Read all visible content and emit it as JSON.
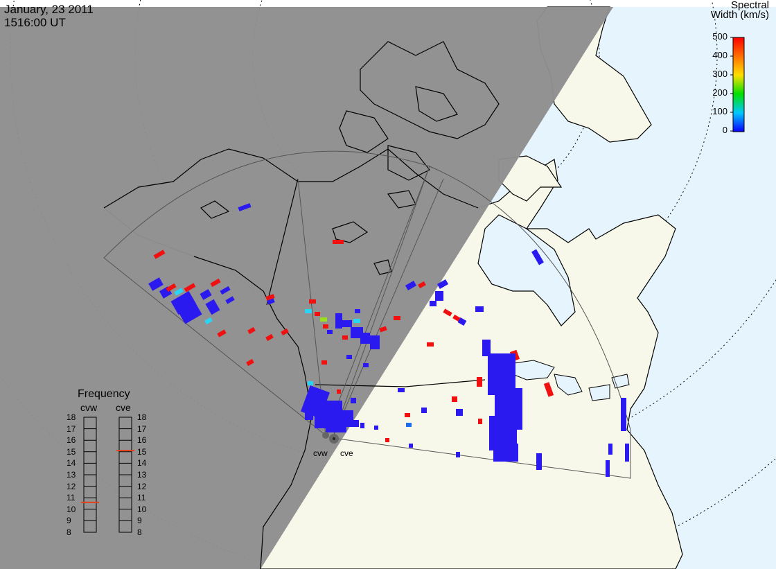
{
  "header": {
    "date": "January, 23 2011",
    "time": "1516:00 UT"
  },
  "colorbar": {
    "title_line1": "Spectral",
    "title_line2": "Width (km/s)",
    "ticks": [
      "500",
      "400",
      "300",
      "200",
      "100",
      "0"
    ],
    "range": [
      0,
      500
    ]
  },
  "frequency": {
    "title": "Frequency",
    "radars": [
      {
        "name": "cvw",
        "value_mhz": 10.6
      },
      {
        "name": "cve",
        "value_mhz": 15.1
      }
    ],
    "scale": [
      "18",
      "17",
      "16",
      "15",
      "14",
      "13",
      "12",
      "11",
      "10",
      "9",
      "8"
    ]
  },
  "map_labels": {
    "site_west": "cvw",
    "site_east": "cve"
  },
  "colors": {
    "night": "#8e8e8e",
    "ocean_day": "#e6f4fd",
    "land_day": "#f8f8ea",
    "coast": "#000000",
    "marker_low": "#2a1af0",
    "marker_high": "#f01010",
    "marker_cyan": "#2ad4f4",
    "marker_mid": "#1e6cf0"
  }
}
